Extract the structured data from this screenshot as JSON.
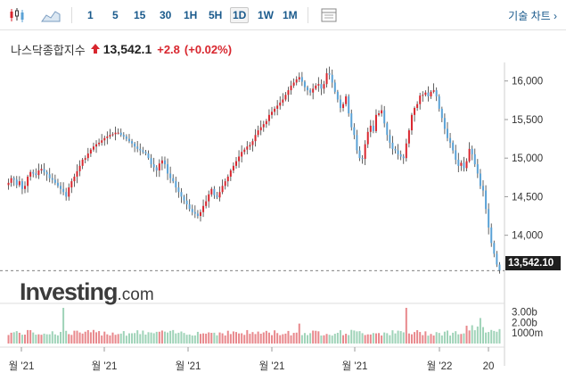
{
  "toolbar": {
    "chart_types": [
      "candlestick-icon",
      "area-chart-icon"
    ],
    "intervals": [
      "1",
      "5",
      "15",
      "30",
      "1H",
      "5H",
      "1D",
      "1W",
      "1M"
    ],
    "active_interval": "1D",
    "table_icon": "table-icon",
    "tools_label": "기술 차트 ›"
  },
  "header": {
    "name": "나스닥종합지수",
    "price": "13,542.1",
    "change": "+2.8",
    "change_pct": "(+0.02%)",
    "direction_icon": "up-arrow-icon"
  },
  "logo": {
    "main": "Investing",
    "domain": ".com"
  },
  "colors": {
    "up": "#d9262e",
    "down": "#5aa2d6",
    "vol_up": "#e8888c",
    "vol_down": "#9fd3b8",
    "text": "#333333",
    "link": "#1a5a8c"
  },
  "chart_data": {
    "type": "candlestick",
    "last_price": 13542.1,
    "last_price_label": "13,542.10",
    "y_ticks": [
      14000,
      14500,
      15000,
      15500,
      16000
    ],
    "y_tick_labels": [
      "14,000",
      "14,500",
      "15,000",
      "15,500",
      "16,000"
    ],
    "ylim": [
      13140,
      16240
    ],
    "x_tick_labels": [
      "월 '21",
      "월 '21",
      "월 '21",
      "월 '21",
      "월 '21",
      "월 '22",
      "20"
    ],
    "volume_ticks": [
      "3.00b",
      "2.00b",
      "1000m"
    ],
    "volume_max": 3400000000,
    "closes": [
      14680,
      14740,
      14720,
      14650,
      14700,
      14600,
      14640,
      14760,
      14820,
      14800,
      14780,
      14840,
      14860,
      14820,
      14790,
      14740,
      14720,
      14680,
      14640,
      14600,
      14560,
      14500,
      14620,
      14700,
      14760,
      14830,
      14900,
      14980,
      15000,
      15060,
      15110,
      15150,
      15180,
      15200,
      15230,
      15260,
      15280,
      15300,
      15310,
      15330,
      15330,
      15300,
      15280,
      15250,
      15220,
      15190,
      15150,
      15120,
      15100,
      15080,
      15060,
      15000,
      14920,
      14880,
      14840,
      14930,
      14970,
      14920,
      14800,
      14740,
      14700,
      14620,
      14560,
      14500,
      14450,
      14400,
      14340,
      14300,
      14280,
      14250,
      14300,
      14380,
      14440,
      14530,
      14600,
      14520,
      14490,
      14560,
      14640,
      14700,
      14760,
      14840,
      14900,
      14960,
      15020,
      15080,
      15110,
      15150,
      15170,
      15220,
      15300,
      15360,
      15400,
      15440,
      15480,
      15560,
      15600,
      15640,
      15680,
      15720,
      15760,
      15820,
      15880,
      15940,
      15980,
      16020,
      16050,
      15990,
      15920,
      15880,
      15850,
      15900,
      15940,
      15960,
      15900,
      15960,
      16100,
      16080,
      15980,
      15860,
      15760,
      15650,
      15700,
      15800,
      15580,
      15400,
      15300,
      15100,
      15000,
      14990,
      15180,
      15340,
      15420,
      15350,
      15560,
      15580,
      15620,
      15450,
      15300,
      15200,
      15120,
      15100,
      15050,
      15020,
      15000,
      15190,
      15360,
      15560,
      15650,
      15700,
      15810,
      15820,
      15850,
      15800,
      15860,
      15880,
      15800,
      15640,
      15520,
      15380,
      15260,
      15200,
      15100,
      14980,
      14900,
      14940,
      14870,
      14960,
      15120,
      15050,
      14920,
      14800,
      14640,
      14580,
      14340,
      14100,
      13900,
      13760,
      13620,
      13542.1
    ],
    "volume_spikes": {
      "20": 3.4,
      "106": 1.9,
      "125": 1.3,
      "145": 3.4,
      "172": 1.8
    }
  }
}
